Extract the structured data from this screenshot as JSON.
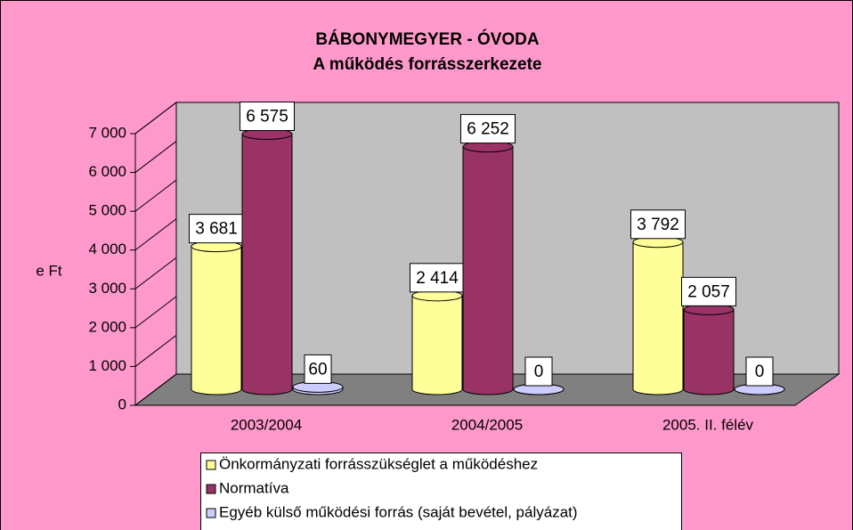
{
  "chart_data": {
    "type": "bar3d",
    "title": "BÁBONYMEGYER - ÓVODA",
    "subtitle": "A működés forrásszerkezete",
    "ylabel": "e Ft",
    "categories": [
      "2003/2004",
      "2004/2005",
      "2005. II. félév"
    ],
    "series": [
      {
        "name": "Önkormányzati forrásszükséglet a működéshez",
        "color": "#ffff99",
        "values": [
          3681,
          2414,
          3792
        ],
        "value_labels": [
          "3 681",
          "2 414",
          "3 792"
        ]
      },
      {
        "name": "Normatíva",
        "color": "#993366",
        "values": [
          6575,
          6252,
          2057
        ],
        "value_labels": [
          "6 575",
          "6 252",
          "2 057"
        ]
      },
      {
        "name": "Egyéb külső működési forrás (saját bevétel, pályázat)",
        "color": "#ccccff",
        "values": [
          60,
          0,
          0
        ]
      }
    ],
    "ylim": [
      0,
      7000
    ],
    "yticks": [
      0,
      {
        "value": 1000,
        "label": "1 000"
      },
      {
        "value": 2000,
        "label": "2 000"
      },
      {
        "value": 3000,
        "label": "3 000"
      },
      {
        "value": 4000,
        "label": "4 000"
      },
      {
        "value": 5000,
        "label": "5 000"
      },
      {
        "value": 6000,
        "label": "6 000"
      },
      {
        "value": 7000,
        "label": "7 000"
      }
    ],
    "grid": true
  }
}
